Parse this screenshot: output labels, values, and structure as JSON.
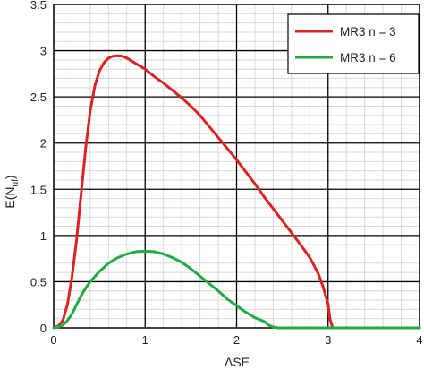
{
  "chart_data": {
    "type": "line",
    "xlabel": "ΔSE",
    "ylabel_main": "E(N",
    "ylabel_sub": "uf",
    "ylabel_close": ")",
    "xlim": [
      0,
      4
    ],
    "ylim": [
      0,
      3.5
    ],
    "x_ticks": [
      "0",
      "1",
      "2",
      "3",
      "4"
    ],
    "y_ticks": [
      "0",
      "0.5",
      "1",
      "1.5",
      "2",
      "2.5",
      "3",
      "3.5"
    ],
    "grid": true,
    "legend_position": "top-right",
    "series": [
      {
        "name": "MR3 n = 3",
        "color": "#dd2222",
        "x": [
          0,
          0.05,
          0.1,
          0.15,
          0.2,
          0.25,
          0.3,
          0.35,
          0.4,
          0.45,
          0.5,
          0.55,
          0.6,
          0.65,
          0.7,
          0.75,
          0.8,
          0.9,
          1.0,
          1.1,
          1.2,
          1.3,
          1.4,
          1.5,
          1.6,
          1.7,
          1.8,
          1.9,
          2.0,
          2.1,
          2.2,
          2.3,
          2.4,
          2.5,
          2.6,
          2.7,
          2.8,
          2.85,
          2.9,
          2.95,
          3.0,
          3.02,
          3.05,
          3.1,
          3.2,
          3.5,
          4.0
        ],
        "y": [
          0,
          0.02,
          0.08,
          0.25,
          0.55,
          0.95,
          1.45,
          1.95,
          2.35,
          2.62,
          2.78,
          2.87,
          2.92,
          2.94,
          2.945,
          2.94,
          2.92,
          2.86,
          2.8,
          2.72,
          2.65,
          2.57,
          2.49,
          2.4,
          2.3,
          2.18,
          2.06,
          1.94,
          1.82,
          1.69,
          1.56,
          1.42,
          1.29,
          1.16,
          1.03,
          0.9,
          0.76,
          0.67,
          0.57,
          0.43,
          0.26,
          0.1,
          0.0,
          0.0,
          0.0,
          0.0,
          0.0
        ]
      },
      {
        "name": "MR3 n = 6",
        "color": "#22aa44",
        "x": [
          0,
          0.05,
          0.1,
          0.15,
          0.2,
          0.25,
          0.3,
          0.35,
          0.4,
          0.5,
          0.6,
          0.7,
          0.8,
          0.9,
          1.0,
          1.1,
          1.2,
          1.3,
          1.4,
          1.5,
          1.6,
          1.7,
          1.8,
          1.9,
          2.0,
          2.1,
          2.2,
          2.3,
          2.35,
          2.4,
          2.45,
          2.5,
          3.0,
          4.0
        ],
        "y": [
          0,
          0.01,
          0.03,
          0.08,
          0.15,
          0.25,
          0.35,
          0.43,
          0.5,
          0.61,
          0.7,
          0.76,
          0.8,
          0.825,
          0.83,
          0.825,
          0.8,
          0.76,
          0.71,
          0.64,
          0.56,
          0.48,
          0.4,
          0.31,
          0.24,
          0.17,
          0.11,
          0.07,
          0.03,
          0.01,
          0.0,
          0.0,
          0.0,
          0.0
        ]
      }
    ]
  }
}
